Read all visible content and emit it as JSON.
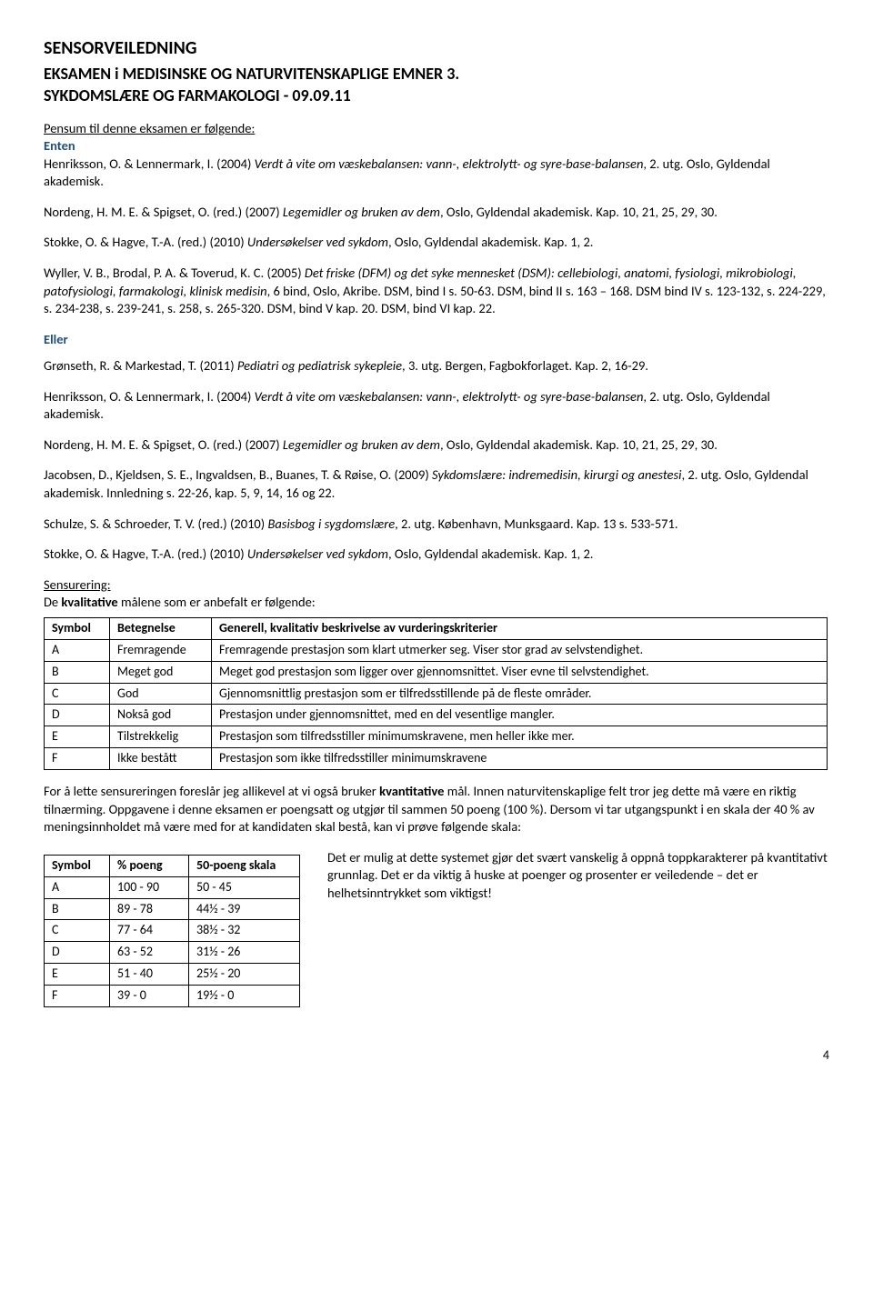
{
  "title": "SENSORVEILEDNING",
  "subtitle1": "EKSAMEN i MEDISINSKE OG NATURVITENSKAPLIGE EMNER 3.",
  "subtitle2": "SYKDOMSLÆRE OG FARMAKOLOGI - 09.09.11",
  "pensum_heading": "Pensum til denne eksamen er følgende:",
  "enten": "Enten",
  "eller": "Eller",
  "refs": {
    "henriksson": {
      "pre": "Henriksson, O. & Lennermark, I. (2004) ",
      "title": "Verdt å vite om væskebalansen: vann-, elektrolytt- og syre-base-balansen",
      "post": ", 2. utg. Oslo, Gyldendal akademisk."
    },
    "nordeng": {
      "pre": "Nordeng, H. M. E. & Spigset, O. (red.) (2007) ",
      "title": "Legemidler og bruken av dem",
      "post": ", Oslo, Gyldendal akademisk. Kap. 10, 21, 25, 29, 30."
    },
    "stokke": {
      "pre": "Stokke, O. & Hagve, T.-A. (red.) (2010) ",
      "title": "Undersøkelser ved sykdom",
      "post": ", Oslo, Gyldendal akademisk. Kap. 1, 2."
    },
    "wyller": {
      "pre": "Wyller, V. B., Brodal, P. A. & Toverud, K. C. (2005) ",
      "title": "Det friske (DFM) og det syke mennesket (DSM): cellebiologi, anatomi, fysiologi, mikrobiologi, patofysiologi, farmakologi, klinisk medisin",
      "post": ", 6 bind, Oslo, Akribe. DSM, bind I s. 50-63. DSM, bind II s. 163 – 168. DSM bind IV s. 123-132, s. 224-229, s. 234-238, s. 239-241, s. 258, s. 265-320. DSM, bind V kap. 20. DSM, bind VI kap. 22."
    },
    "gronseth": {
      "pre": "Grønseth, R. & Markestad, T. (2011) ",
      "title": "Pediatri og pediatrisk sykepleie",
      "post": ", 3. utg. Bergen, Fagbokforlaget. Kap. 2, 16-29."
    },
    "jacobsen": {
      "pre": "Jacobsen, D., Kjeldsen, S. E., Ingvaldsen, B., Buanes, T. & Røise, O. (2009) ",
      "title": "Sykdomslære: indremedisin, kirurgi og anestesi",
      "post": ", 2. utg. Oslo, Gyldendal akademisk. Innledning s. 22-26, kap. 5, 9, 14, 16 og 22."
    },
    "schulze": {
      "pre": "Schulze, S. & Schroeder, T. V. (red.) (2010) ",
      "title": "Basisbog i sygdomslære",
      "post": ", 2. utg. København, Munksgaard. Kap. 13 s. 533-571."
    }
  },
  "sensurering_heading": "Sensurering:",
  "sensurering_intro_pre": "De ",
  "sensurering_intro_bold": "kvalitative",
  "sensurering_intro_post": " målene som er anbefalt er følgende:",
  "grade_table": {
    "headers": [
      "Symbol",
      "Betegnelse",
      "Generell, kvalitativ beskrivelse av vurderingskriterier"
    ],
    "rows": [
      [
        "A",
        "Fremragende",
        "Fremragende prestasjon som klart utmerker seg. Viser stor grad av selvstendighet."
      ],
      [
        "B",
        "Meget god",
        "Meget god prestasjon som ligger over gjennomsnittet. Viser evne til selvstendighet."
      ],
      [
        "C",
        "God",
        "Gjennomsnittlig prestasjon som er tilfredsstillende på de fleste områder."
      ],
      [
        "D",
        "Nokså god",
        "Prestasjon under gjennomsnittet, med en del vesentlige mangler."
      ],
      [
        "E",
        "Tilstrekkelig",
        "Prestasjon som tilfredsstiller minimumskravene, men heller ikke mer."
      ],
      [
        "F",
        "Ikke bestått",
        "Prestasjon som ikke tilfredsstiller minimumskravene"
      ]
    ]
  },
  "quant_para_pre": "For å lette sensureringen foreslår jeg allikevel at vi også bruker ",
  "quant_para_bold": "kvantitative",
  "quant_para_post": " mål. Innen naturvitenskaplige felt tror jeg dette må være en riktig tilnærming. Oppgavene i denne eksamen er poengsatt og utgjør til sammen 50 poeng (100 %). Dersom vi tar utgangspunkt i en skala der 40 % av meningsinnholdet må være med for at kandidaten skal bestå, kan vi prøve følgende skala:",
  "scale_table": {
    "headers": [
      "Symbol",
      "% poeng",
      "50-poeng skala"
    ],
    "rows": [
      [
        "A",
        "100 - 90",
        "50 - 45"
      ],
      [
        "B",
        "89 - 78",
        "44½ - 39"
      ],
      [
        "C",
        "77 - 64",
        "38½ - 32"
      ],
      [
        "D",
        "63 - 52",
        "31½ - 26"
      ],
      [
        "E",
        "51 - 40",
        "25½ - 20"
      ],
      [
        "F",
        "39 - 0",
        "19½ - 0"
      ]
    ]
  },
  "bottom_note": "Det er mulig at dette systemet gjør det svært vanskelig å oppnå toppkarakterer på kvantitativt grunnlag. Det er da viktig å huske at poenger og prosenter er veiledende – det er helhetsinntrykket som viktigst!",
  "page_number": "4"
}
